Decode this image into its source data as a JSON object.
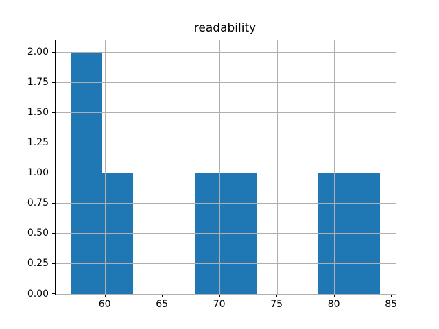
{
  "chart_data": {
    "type": "histogram",
    "title": "readability",
    "bin_edges": [
      57.0,
      59.7,
      62.4,
      65.1,
      67.8,
      70.5,
      73.2,
      75.9,
      78.6,
      81.3,
      84.0
    ],
    "counts": [
      2,
      1,
      0,
      0,
      1,
      1,
      0,
      0,
      1,
      1
    ],
    "xlim": [
      55.65,
      85.35
    ],
    "ylim": [
      0,
      2.1
    ],
    "xticks": [
      60,
      65,
      70,
      75,
      80,
      85
    ],
    "xtick_labels": [
      "60",
      "65",
      "70",
      "75",
      "80",
      "85"
    ],
    "yticks": [
      0.0,
      0.25,
      0.5,
      0.75,
      1.0,
      1.25,
      1.5,
      1.75,
      2.0
    ],
    "ytick_labels": [
      "0.00",
      "0.25",
      "0.50",
      "0.75",
      "1.00",
      "1.25",
      "1.50",
      "1.75",
      "2.00"
    ],
    "grid": true,
    "legend": null,
    "xlabel": "",
    "ylabel": "",
    "bar_color": "#1f77b4",
    "grid_color": "#b0b0b0",
    "background_color": "#ffffff"
  }
}
